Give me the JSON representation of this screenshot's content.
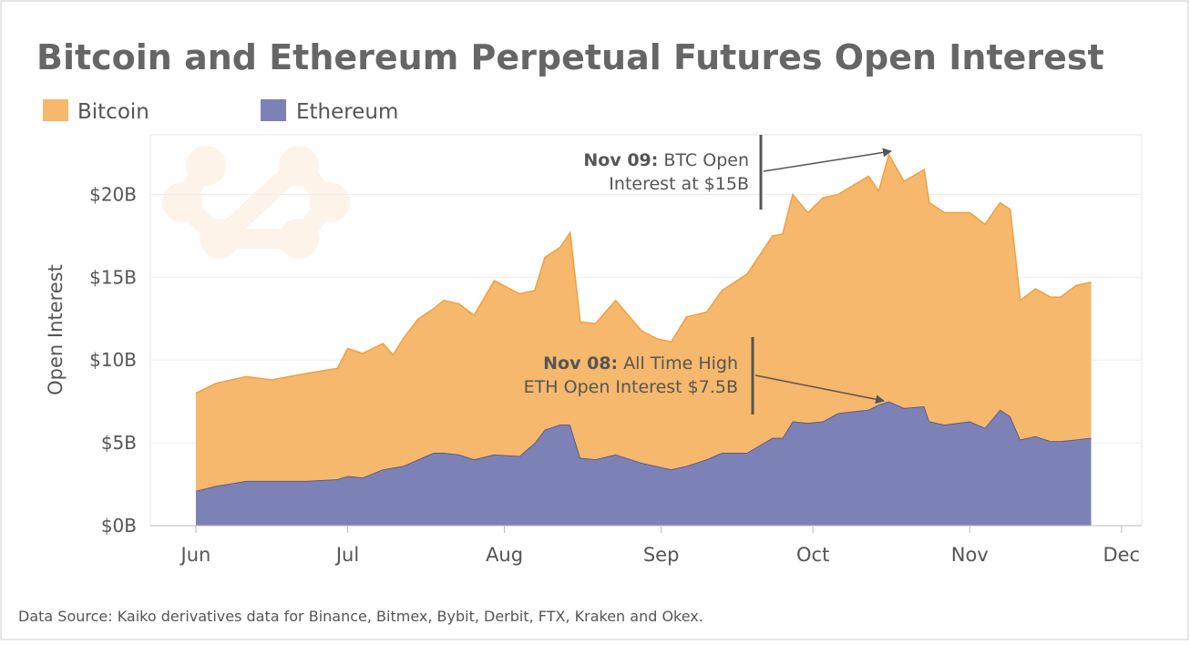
{
  "chart_data": {
    "type": "stacked_area",
    "title": "Bitcoin and Ethereum Perpetual Futures Open Interest",
    "y_label": "Open Interest",
    "source": "Data Source: Kaiko derivatives data for Binance, Bitmex, Bybit, Derbit, FTX, Kraken and Okex.",
    "x": [
      0,
      4,
      10,
      15,
      22,
      28,
      30,
      33,
      37,
      39,
      41,
      44,
      47,
      49,
      52,
      55,
      59,
      64,
      67,
      69,
      72,
      74,
      76,
      79,
      83,
      88,
      91,
      94,
      97,
      101,
      104,
      109,
      114,
      116,
      118,
      121,
      124,
      127,
      133,
      135,
      137,
      140,
      144,
      145,
      148,
      153,
      156,
      159,
      161,
      163,
      166,
      169,
      171,
      174,
      177
    ],
    "xlim": [
      -9,
      187
    ],
    "xticks": [
      {
        "value": 0,
        "label": "Jun"
      },
      {
        "value": 30,
        "label": "Jul"
      },
      {
        "value": 61,
        "label": "Aug"
      },
      {
        "value": 92,
        "label": "Sep"
      },
      {
        "value": 122,
        "label": "Oct"
      },
      {
        "value": 153,
        "label": "Nov"
      },
      {
        "value": 183,
        "label": "Dec"
      }
    ],
    "ylim": [
      0,
      23.6
    ],
    "yticks": [
      {
        "value": 0,
        "label": "$0B"
      },
      {
        "value": 5,
        "label": "$5B"
      },
      {
        "value": 10,
        "label": "$10B"
      },
      {
        "value": 15,
        "label": "$15B"
      },
      {
        "value": 20,
        "label": "$20B"
      }
    ],
    "grid": true,
    "series": [
      {
        "name": "Ethereum",
        "color": "#7c81b6",
        "values": [
          2.1,
          2.4,
          2.7,
          2.7,
          2.7,
          2.8,
          3.0,
          2.9,
          3.4,
          3.5,
          3.6,
          4.0,
          4.4,
          4.4,
          4.3,
          4.0,
          4.3,
          4.2,
          5.0,
          5.8,
          6.1,
          6.1,
          4.1,
          4.0,
          4.3,
          3.8,
          3.6,
          3.4,
          3.6,
          4.0,
          4.4,
          4.4,
          5.3,
          5.3,
          6.3,
          6.2,
          6.3,
          6.8,
          7.0,
          7.3,
          7.5,
          7.1,
          7.2,
          6.3,
          6.1,
          6.3,
          5.9,
          7.0,
          6.6,
          5.2,
          5.4,
          5.1,
          5.1,
          5.2,
          5.3
        ]
      },
      {
        "name": "Bitcoin",
        "color": "#f5b86c",
        "values": [
          5.9,
          6.2,
          6.3,
          6.1,
          6.5,
          6.7,
          7.7,
          7.5,
          7.6,
          6.8,
          7.7,
          8.5,
          8.7,
          9.2,
          9.1,
          8.7,
          10.5,
          9.8,
          9.2,
          10.4,
          10.7,
          11.6,
          8.2,
          8.2,
          9.3,
          8.0,
          7.7,
          7.7,
          9.0,
          8.9,
          9.8,
          10.8,
          12.2,
          12.3,
          13.7,
          12.7,
          13.5,
          13.2,
          14.1,
          12.9,
          14.9,
          13.7,
          14.3,
          13.2,
          12.8,
          12.6,
          12.3,
          12.5,
          12.5,
          8.4,
          8.9,
          8.7,
          8.7,
          9.3,
          9.4
        ]
      }
    ],
    "annotations": [
      {
        "bold": "Nov 09:",
        "lines": [
          "BTC Open",
          "Interest at $15B"
        ]
      },
      {
        "bold": "Nov 08:",
        "lines": [
          "All Time High",
          "ETH Open Interest $7.5B"
        ]
      }
    ]
  }
}
